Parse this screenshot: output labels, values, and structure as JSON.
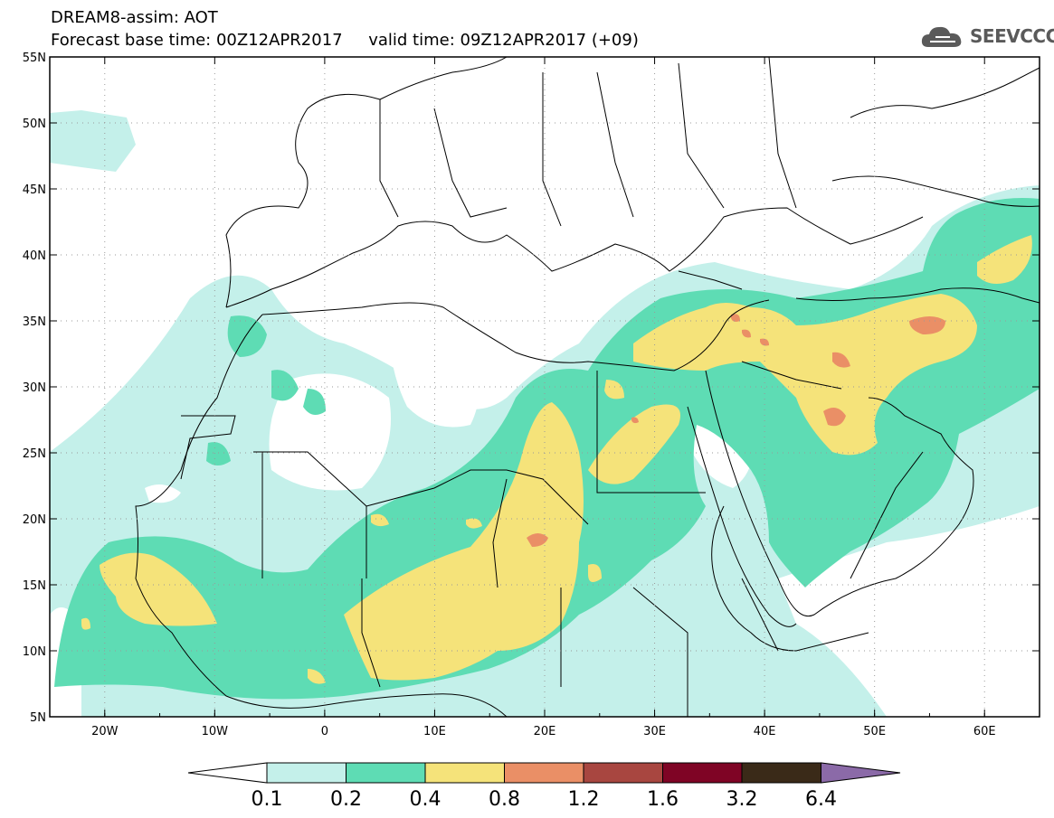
{
  "header": {
    "title_line1": "DREAM8-assim: AOT",
    "title_line2": "Forecast base time: 00Z12APR2017     valid time: 09Z12APR2017 (+09)"
  },
  "logo": {
    "text": "SEEVCCC",
    "icon": "cloud-logo-icon"
  },
  "map": {
    "lon_labels": [
      "20W",
      "10W",
      "0",
      "10E",
      "20E",
      "30E",
      "40E",
      "50E",
      "60E"
    ],
    "lat_labels": [
      "55N",
      "50N",
      "45N",
      "40N",
      "35N",
      "30N",
      "25N",
      "20N",
      "15N",
      "10N",
      "5N"
    ],
    "extent": {
      "lon": [
        -25,
        65
      ],
      "lat": [
        5,
        55
      ]
    }
  },
  "colorbar": {
    "labels": [
      "0.1",
      "0.2",
      "0.4",
      "0.8",
      "1.2",
      "1.6",
      "3.2",
      "6.4"
    ],
    "colors": [
      "#ffffff",
      "#c4f0ea",
      "#5edcb4",
      "#f5e37a",
      "#ea8f66",
      "#a84640",
      "#7f0425",
      "#3a2a18",
      "#8b6aa8"
    ]
  }
}
